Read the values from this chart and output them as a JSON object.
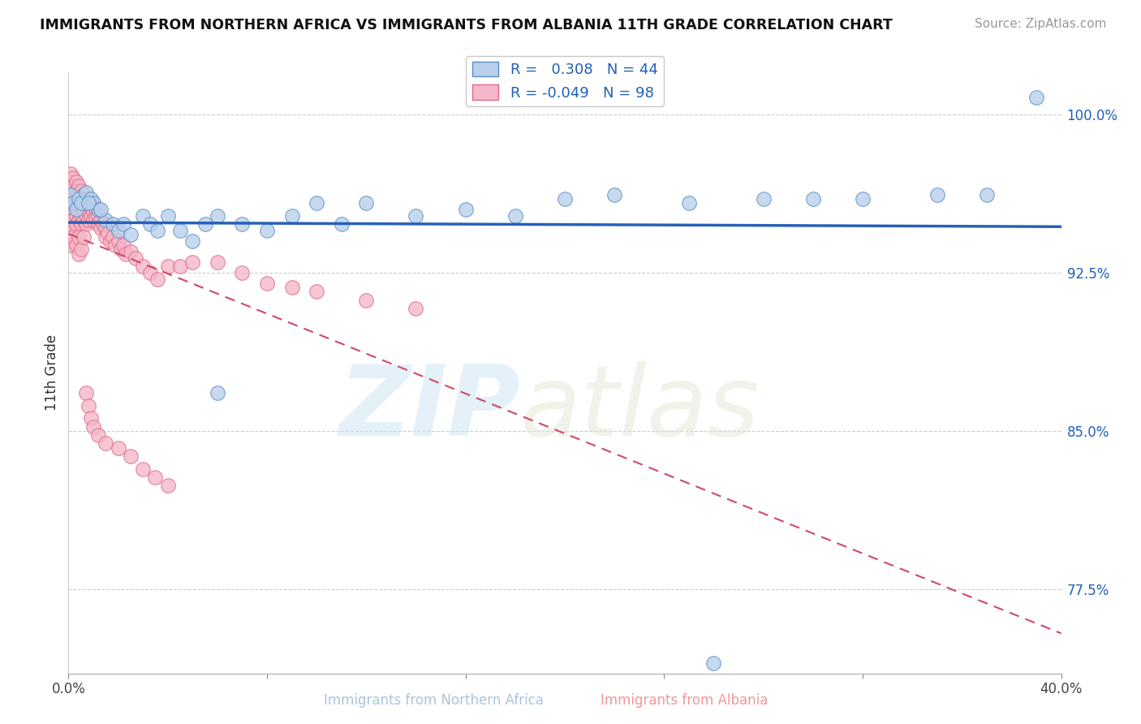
{
  "title": "IMMIGRANTS FROM NORTHERN AFRICA VS IMMIGRANTS FROM ALBANIA 11TH GRADE CORRELATION CHART",
  "source": "Source: ZipAtlas.com",
  "xlabel_blue": "Immigrants from Northern Africa",
  "xlabel_pink": "Immigrants from Albania",
  "ylabel": "11th Grade",
  "xlim": [
    0.0,
    0.4
  ],
  "ylim": [
    0.735,
    1.02
  ],
  "yticks": [
    0.775,
    0.85,
    0.925,
    1.0
  ],
  "ytick_labels": [
    "77.5%",
    "85.0%",
    "92.5%",
    "100.0%"
  ],
  "xtick_positions": [
    0.0,
    0.08,
    0.16,
    0.24,
    0.32,
    0.4
  ],
  "xtick_labels": [
    "0.0%",
    "",
    "",
    "",
    "",
    "40.0%"
  ],
  "R_blue": 0.308,
  "N_blue": 44,
  "R_pink": -0.049,
  "N_pink": 98,
  "blue_fill": "#b8d0ec",
  "blue_edge": "#5b8ec4",
  "pink_fill": "#f4b8c8",
  "pink_edge": "#e06888",
  "trend_blue": "#2860b8",
  "trend_pink": "#d04868",
  "grid_color": "#cccccc",
  "blue_x": [
    0.001,
    0.002,
    0.003,
    0.004,
    0.005,
    0.007,
    0.009,
    0.01,
    0.012,
    0.015,
    0.018,
    0.02,
    0.022,
    0.025,
    0.03,
    0.033,
    0.036,
    0.04,
    0.045,
    0.05,
    0.055,
    0.06,
    0.07,
    0.08,
    0.09,
    0.1,
    0.11,
    0.12,
    0.14,
    0.16,
    0.18,
    0.2,
    0.22,
    0.25,
    0.28,
    0.3,
    0.32,
    0.35,
    0.37,
    0.39,
    0.008,
    0.013,
    0.06,
    0.26
  ],
  "blue_y": [
    0.962,
    0.958,
    0.955,
    0.96,
    0.958,
    0.963,
    0.96,
    0.958,
    0.955,
    0.95,
    0.948,
    0.945,
    0.948,
    0.943,
    0.952,
    0.948,
    0.945,
    0.952,
    0.945,
    0.94,
    0.948,
    0.952,
    0.948,
    0.945,
    0.952,
    0.958,
    0.948,
    0.958,
    0.952,
    0.955,
    0.952,
    0.96,
    0.962,
    0.958,
    0.96,
    0.96,
    0.96,
    0.962,
    0.962,
    1.008,
    0.958,
    0.955,
    0.868,
    0.74
  ],
  "pink_x": [
    0.001,
    0.001,
    0.001,
    0.001,
    0.001,
    0.001,
    0.001,
    0.001,
    0.001,
    0.002,
    0.002,
    0.002,
    0.002,
    0.002,
    0.002,
    0.002,
    0.003,
    0.003,
    0.003,
    0.003,
    0.003,
    0.003,
    0.004,
    0.004,
    0.004,
    0.004,
    0.004,
    0.005,
    0.005,
    0.005,
    0.005,
    0.005,
    0.006,
    0.006,
    0.006,
    0.006,
    0.007,
    0.007,
    0.007,
    0.007,
    0.008,
    0.008,
    0.008,
    0.009,
    0.009,
    0.01,
    0.01,
    0.01,
    0.011,
    0.011,
    0.012,
    0.012,
    0.013,
    0.013,
    0.014,
    0.015,
    0.015,
    0.016,
    0.017,
    0.018,
    0.019,
    0.02,
    0.021,
    0.022,
    0.023,
    0.025,
    0.027,
    0.03,
    0.033,
    0.036,
    0.04,
    0.045,
    0.05,
    0.06,
    0.07,
    0.08,
    0.09,
    0.1,
    0.12,
    0.14,
    0.001,
    0.002,
    0.003,
    0.004,
    0.004,
    0.005,
    0.006,
    0.007,
    0.008,
    0.009,
    0.01,
    0.012,
    0.015,
    0.02,
    0.025,
    0.03,
    0.035,
    0.04
  ],
  "pink_y": [
    0.972,
    0.968,
    0.964,
    0.96,
    0.956,
    0.952,
    0.948,
    0.944,
    0.94,
    0.97,
    0.966,
    0.962,
    0.958,
    0.954,
    0.95,
    0.946,
    0.968,
    0.964,
    0.96,
    0.956,
    0.952,
    0.948,
    0.966,
    0.962,
    0.958,
    0.954,
    0.95,
    0.964,
    0.96,
    0.956,
    0.952,
    0.948,
    0.962,
    0.958,
    0.954,
    0.95,
    0.96,
    0.956,
    0.952,
    0.948,
    0.958,
    0.954,
    0.95,
    0.956,
    0.952,
    0.958,
    0.954,
    0.95,
    0.955,
    0.951,
    0.952,
    0.948,
    0.95,
    0.946,
    0.948,
    0.946,
    0.942,
    0.944,
    0.94,
    0.942,
    0.938,
    0.94,
    0.936,
    0.938,
    0.934,
    0.935,
    0.932,
    0.928,
    0.925,
    0.922,
    0.928,
    0.928,
    0.93,
    0.93,
    0.925,
    0.92,
    0.918,
    0.916,
    0.912,
    0.908,
    0.938,
    0.942,
    0.938,
    0.934,
    0.942,
    0.936,
    0.942,
    0.868,
    0.862,
    0.856,
    0.852,
    0.848,
    0.844,
    0.842,
    0.838,
    0.832,
    0.828,
    0.824
  ]
}
